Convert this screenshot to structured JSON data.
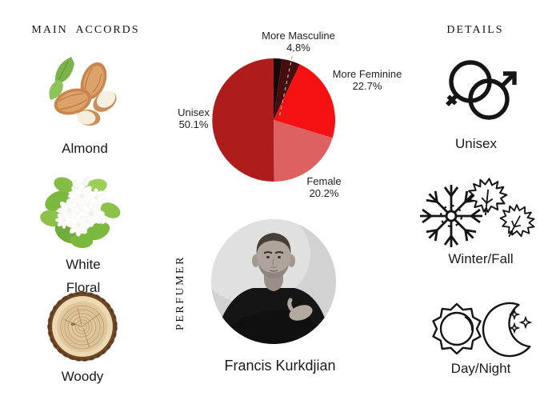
{
  "page": {
    "background": "#ffffff",
    "text_color": "#1c1c1c"
  },
  "accords": {
    "title": "MAIN ACCORDS",
    "items": [
      {
        "name": "almond",
        "line1": "Almond",
        "line2": "",
        "icon": "almond-image"
      },
      {
        "name": "white-floral",
        "line1": "White",
        "line2": "Floral",
        "icon": "white-floral-image"
      },
      {
        "name": "woody",
        "line1": "Woody",
        "line2": "",
        "icon": "wood-log-image"
      }
    ]
  },
  "perfumer": {
    "section_label": "PERFUMER",
    "name": "Francis Kurkdjian",
    "photo": "black-and-white-portrait"
  },
  "details": {
    "title": "DETAILS",
    "items": [
      {
        "label": "Unisex",
        "icon": "male-female-symbols-icon"
      },
      {
        "label": "Winter/Fall",
        "icon": "snowflake-and-maple-leaves-icon"
      },
      {
        "label": "Day/Night",
        "icon": "sun-and-moon-icon"
      }
    ]
  },
  "chart_data": {
    "type": "pie",
    "start_angle": "top",
    "direction": "clockwise",
    "legend_position": "outside-labels",
    "slices": [
      {
        "label": "",
        "display_pct": "",
        "value": 2.2,
        "color": "#1c0708"
      },
      {
        "label": "More Masculine",
        "display_pct": "4.8%",
        "value": 4.8,
        "color": "#450d0e"
      },
      {
        "label": "More Feminine",
        "display_pct": "22.7%",
        "value": 22.7,
        "color": "#f51111"
      },
      {
        "label": "Female",
        "display_pct": "20.2%",
        "value": 20.2,
        "color": "#dd6161"
      },
      {
        "label": "Unisex",
        "display_pct": "50.1%",
        "value": 50.1,
        "color": "#ae1c1c"
      }
    ]
  }
}
